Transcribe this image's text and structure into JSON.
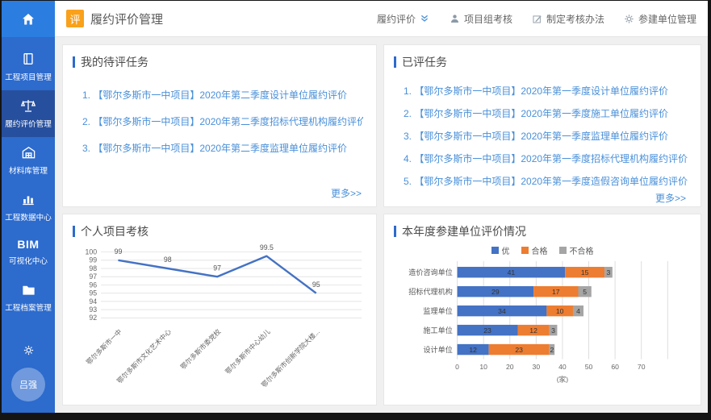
{
  "colors": {
    "sidebar": "#2d6bcd",
    "sidebar_active": "#264f9e",
    "home_tile": "#2b7de0",
    "accent": "#2d6bcd",
    "link": "#4a90d9",
    "badge": "#f9a11b",
    "series_blue": "#4472c4",
    "series_orange": "#ed7d31",
    "series_gray": "#a5a5a5"
  },
  "sidebar": {
    "items": [
      {
        "id": "project-mgmt",
        "icon": "book",
        "label": "工程项目管理",
        "active": false
      },
      {
        "id": "performance-eval",
        "icon": "scales",
        "label": "履约评价管理",
        "active": true
      },
      {
        "id": "material-lib",
        "icon": "warehouse",
        "label": "材料库管理",
        "active": false
      },
      {
        "id": "data-center",
        "icon": "chart",
        "label": "工程数据中心",
        "active": false
      },
      {
        "id": "bim-center",
        "icon": "bim",
        "big": "BIM",
        "label": "可视化中心",
        "active": false
      },
      {
        "id": "archives",
        "icon": "folder",
        "label": "工程档案管理",
        "active": false
      }
    ],
    "avatar_text": "吕强"
  },
  "header": {
    "badge": "评",
    "title": "履约评价管理",
    "menu": [
      {
        "id": "performance-eval",
        "label": "履约评价",
        "icon": "chevrons-down",
        "icon_position": "after"
      },
      {
        "id": "project-group-assess",
        "label": "项目组考核",
        "icon": "person",
        "icon_position": "before"
      },
      {
        "id": "make-assess-method",
        "label": "制定考核办法",
        "icon": "edit",
        "icon_position": "before"
      },
      {
        "id": "unit-mgmt",
        "label": "参建单位管理",
        "icon": "gear",
        "icon_position": "before"
      }
    ]
  },
  "panels": {
    "pending": {
      "title": "我的待评任务",
      "items": [
        "【鄂尔多斯市一中项目】2020年第二季度设计单位履约评价",
        "【鄂尔多斯市一中项目】2020年第二季度招标代理机构履约评价",
        "【鄂尔多斯市一中项目】2020年第二季度监理单位履约评价"
      ],
      "more": "更多>>"
    },
    "evaluated": {
      "title": "已评任务",
      "items": [
        "【鄂尔多斯市一中项目】2020年第一季度设计单位履约评价",
        "【鄂尔多斯市一中项目】2020年第一季度施工单位履约评价",
        "【鄂尔多斯市一中项目】2020年第一季度监理单位履约评价",
        "【鄂尔多斯市一中项目】2020年第一季度招标代理机构履约评价",
        "【鄂尔多斯市一中项目】2020年第一季度造假咨询单位履约评价"
      ],
      "more": "更多>>"
    }
  },
  "chart_data": [
    {
      "type": "line",
      "title": "个人项目考核",
      "categories": [
        "鄂尔多斯市一中",
        "鄂尔多斯市文化艺术中心",
        "鄂尔多斯市委党校",
        "鄂尔多斯市中心幼儿",
        "鄂尔多斯市创新学院大楼..."
      ],
      "values": [
        99,
        98,
        97,
        99.5,
        95
      ],
      "value_labels": [
        "99",
        "98",
        "97",
        "99.5",
        "95"
      ],
      "ylim": [
        92,
        100
      ],
      "yticks": [
        100,
        99,
        98,
        97,
        96,
        95,
        94,
        93,
        92
      ],
      "line_color": "#4472c4",
      "grid": true
    },
    {
      "type": "bar",
      "orientation": "horizontal",
      "stacked": true,
      "title": "本年度参建单位评价情况",
      "categories": [
        "造价咨询单位",
        "招标代理机构",
        "监理单位",
        "施工单位",
        "设计单位"
      ],
      "series": [
        {
          "name": "优",
          "color": "#4472c4",
          "values": [
            41,
            29,
            34,
            23,
            12
          ]
        },
        {
          "name": "合格",
          "color": "#ed7d31",
          "values": [
            15,
            17,
            10,
            12,
            23
          ]
        },
        {
          "name": "不合格",
          "color": "#a5a5a5",
          "values": [
            3,
            5,
            4,
            3,
            2
          ]
        }
      ],
      "xlim": [
        0,
        80
      ],
      "xticks": [
        0,
        10,
        20,
        30,
        40,
        50,
        60,
        70
      ],
      "xlabel": "(家)",
      "legend_position": "top",
      "grid": true
    }
  ]
}
